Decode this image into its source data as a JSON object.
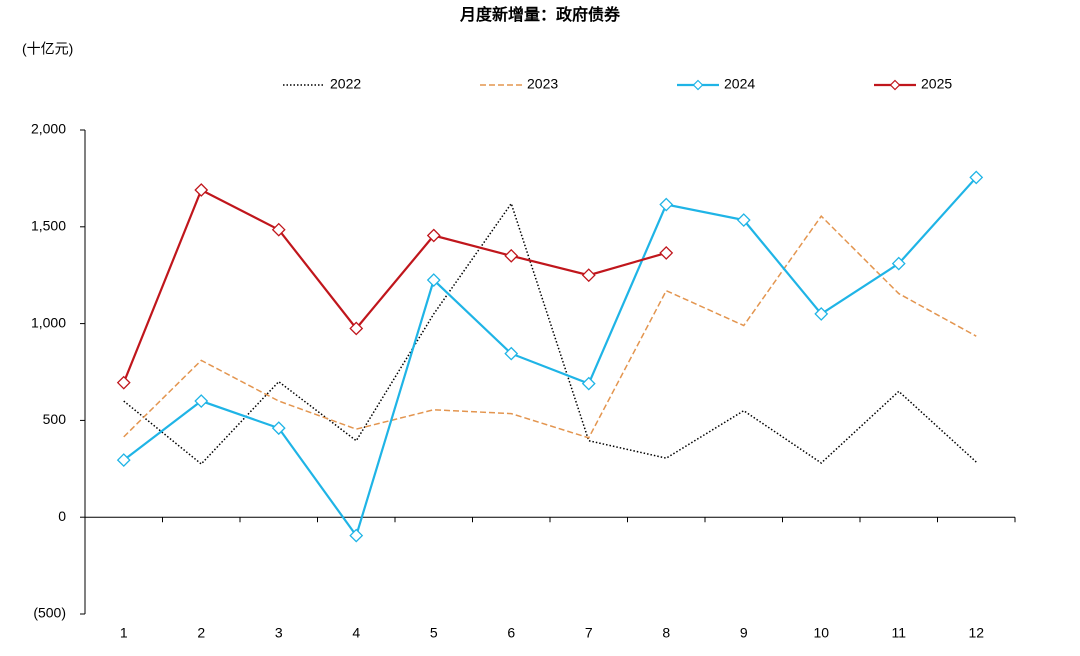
{
  "chart_data": {
    "type": "line",
    "title": "月度新增量：政府债券",
    "y_label": "(十亿元)",
    "categories": [
      "1",
      "2",
      "3",
      "4",
      "5",
      "6",
      "7",
      "8",
      "9",
      "10",
      "11",
      "12"
    ],
    "series": [
      {
        "name": "2022",
        "color": "#000000",
        "line_style": "dotted",
        "marker": "none",
        "values": [
          600,
          275,
          700,
          395,
          1050,
          1620,
          395,
          305,
          550,
          280,
          650,
          285
        ]
      },
      {
        "name": "2023",
        "color": "#e3954f",
        "line_style": "dashed",
        "marker": "none",
        "values": [
          415,
          810,
          600,
          455,
          555,
          535,
          410,
          1170,
          990,
          1555,
          1155,
          935
        ]
      },
      {
        "name": "2024",
        "color": "#1fb4e6",
        "line_style": "solid",
        "marker": "diamond",
        "values": [
          295,
          600,
          460,
          -95,
          1225,
          845,
          690,
          1615,
          1535,
          1050,
          1310,
          1755
        ]
      },
      {
        "name": "2025",
        "color": "#c0161c",
        "line_style": "solid",
        "marker": "diamond",
        "values": [
          695,
          1690,
          1485,
          975,
          1455,
          1350,
          1250,
          1365,
          null,
          null,
          null,
          null
        ]
      }
    ],
    "ylim": [
      -500,
      2000
    ],
    "yticks": [
      {
        "value": -500,
        "label": "(500)"
      },
      0,
      500,
      {
        "value": 1000,
        "label": "1,000"
      },
      {
        "value": 1500,
        "label": "1,500"
      },
      {
        "value": 2000,
        "label": "2,000"
      }
    ],
    "grid": false,
    "legend": "top"
  }
}
